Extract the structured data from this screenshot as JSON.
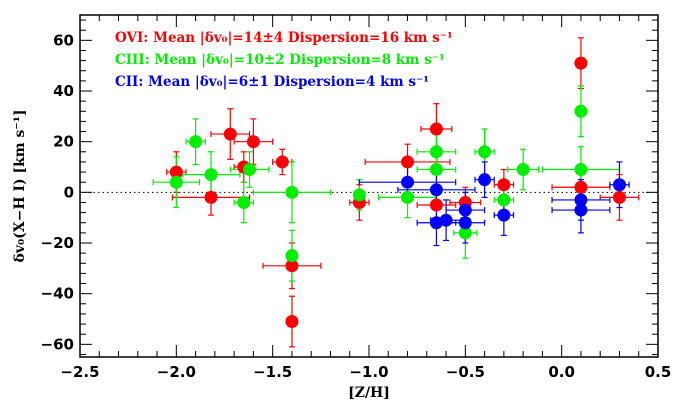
{
  "chart_data": {
    "type": "scatter",
    "xlabel": "[Z/H]",
    "ylabel": "δv₀(X−H I) [km s⁻¹]",
    "xlim": [
      -2.5,
      0.5
    ],
    "ylim": [
      -65,
      70
    ],
    "x_ticks": [
      -2.5,
      -2.0,
      -1.5,
      -1.0,
      -0.5,
      0.0,
      0.5
    ],
    "x_tick_labels": [
      "−2.5",
      "−2.0",
      "−1.5",
      "−1.0",
      "−0.5",
      "0.0",
      "0.5"
    ],
    "y_ticks": [
      -60,
      -40,
      -20,
      0,
      20,
      40,
      60
    ],
    "y_tick_labels": [
      "−60",
      "−40",
      "−20",
      "0",
      "20",
      "40",
      "60"
    ],
    "legend_placement": "top-left",
    "zero_line": true,
    "series": [
      {
        "name": "OVI: Mean |δv₀|=14±4 Dispersion=16 km s⁻¹",
        "color": "#ff0000",
        "points": [
          {
            "x": -2.0,
            "y": 8,
            "xerr": [
              0.05,
              0.05
            ],
            "yerr": [
              8,
              8
            ]
          },
          {
            "x": -1.82,
            "y": -2,
            "xerr": [
              0.2,
              0.2
            ],
            "yerr": [
              7,
              7
            ]
          },
          {
            "x": -1.72,
            "y": 23,
            "xerr": [
              0.1,
              0.1
            ],
            "yerr": [
              10,
              10
            ]
          },
          {
            "x": -1.65,
            "y": 10,
            "xerr": [
              0.05,
              0.05
            ],
            "yerr": [
              6,
              6
            ]
          },
          {
            "x": -1.6,
            "y": 20,
            "xerr": [
              0.1,
              0.1
            ],
            "yerr": [
              9,
              9
            ]
          },
          {
            "x": -1.45,
            "y": 12,
            "xerr": [
              0.05,
              0.05
            ],
            "yerr": [
              5,
              5
            ]
          },
          {
            "x": -1.4,
            "y": -29,
            "xerr": [
              0.15,
              0.15
            ],
            "yerr": [
              9,
              9
            ]
          },
          {
            "x": -1.4,
            "y": -51,
            "xerr": [
              0.02,
              0.02
            ],
            "yerr": [
              10,
              10
            ]
          },
          {
            "x": -1.05,
            "y": -4,
            "xerr": [
              0.05,
              0.05
            ],
            "yerr": [
              7,
              7
            ]
          },
          {
            "x": -0.8,
            "y": 12,
            "xerr": [
              0.22,
              0.22
            ],
            "yerr": [
              7,
              7
            ]
          },
          {
            "x": -0.65,
            "y": 25,
            "xerr": [
              0.08,
              0.08
            ],
            "yerr": [
              10,
              10
            ]
          },
          {
            "x": -0.65,
            "y": -5,
            "xerr": [
              0.1,
              0.1
            ],
            "yerr": [
              6,
              6
            ]
          },
          {
            "x": -0.5,
            "y": -4,
            "xerr": [
              0.08,
              0.08
            ],
            "yerr": [
              6,
              6
            ]
          },
          {
            "x": -0.3,
            "y": 3,
            "xerr": [
              0.05,
              0.05
            ],
            "yerr": [
              6,
              6
            ]
          },
          {
            "x": 0.1,
            "y": 51,
            "xerr": [
              0.02,
              0.02
            ],
            "yerr": [
              10,
              10
            ]
          },
          {
            "x": 0.1,
            "y": 2,
            "xerr": [
              0.15,
              0.15
            ],
            "yerr": [
              8,
              8
            ]
          },
          {
            "x": 0.3,
            "y": -2,
            "xerr": [
              0.1,
              0.1
            ],
            "yerr": [
              9,
              9
            ]
          }
        ]
      },
      {
        "name": "CIII: Mean |δv₀|=10±2 Dispersion=8 km s⁻¹",
        "color": "#00ee00",
        "points": [
          {
            "x": -2.0,
            "y": 4,
            "xerr": [
              0.12,
              0.12
            ],
            "yerr": [
              10,
              10
            ]
          },
          {
            "x": -1.9,
            "y": 20,
            "xerr": [
              0.05,
              0.05
            ],
            "yerr": [
              9,
              9
            ]
          },
          {
            "x": -1.82,
            "y": 7,
            "xerr": [
              0.15,
              0.15
            ],
            "yerr": [
              9,
              9
            ]
          },
          {
            "x": -1.65,
            "y": -4,
            "xerr": [
              0.05,
              0.05
            ],
            "yerr": [
              8,
              8
            ]
          },
          {
            "x": -1.62,
            "y": 9,
            "xerr": [
              0.1,
              0.1
            ],
            "yerr": [
              7,
              7
            ]
          },
          {
            "x": -1.4,
            "y": 0,
            "xerr": [
              0.2,
              0.2
            ],
            "yerr": [
              12,
              12
            ]
          },
          {
            "x": -1.4,
            "y": -25,
            "xerr": [
              0.02,
              0.02
            ],
            "yerr": [
              10,
              10
            ]
          },
          {
            "x": -1.05,
            "y": -1,
            "xerr": [
              0.02,
              0.02
            ],
            "yerr": [
              6,
              6
            ]
          },
          {
            "x": -0.8,
            "y": -2,
            "xerr": [
              0.15,
              0.15
            ],
            "yerr": [
              8,
              8
            ]
          },
          {
            "x": -0.65,
            "y": 16,
            "xerr": [
              0.1,
              0.1
            ],
            "yerr": [
              9,
              9
            ]
          },
          {
            "x": -0.65,
            "y": 9,
            "xerr": [
              0.1,
              0.1
            ],
            "yerr": [
              7,
              7
            ]
          },
          {
            "x": -0.5,
            "y": -16,
            "xerr": [
              0.06,
              0.06
            ],
            "yerr": [
              10,
              10
            ]
          },
          {
            "x": -0.4,
            "y": 16,
            "xerr": [
              0.05,
              0.05
            ],
            "yerr": [
              9,
              9
            ]
          },
          {
            "x": -0.3,
            "y": -3,
            "xerr": [
              0.05,
              0.05
            ],
            "yerr": [
              7,
              7
            ]
          },
          {
            "x": -0.2,
            "y": 9,
            "xerr": [
              0.08,
              0.08
            ],
            "yerr": [
              8,
              8
            ]
          },
          {
            "x": 0.1,
            "y": 32,
            "xerr": [
              0.02,
              0.02
            ],
            "yerr": [
              10,
              10
            ]
          },
          {
            "x": 0.1,
            "y": 9,
            "xerr": [
              0.2,
              0.2
            ],
            "yerr": [
              9,
              9
            ]
          }
        ]
      },
      {
        "name": "CII: Mean |δv₀|=6±1 Dispersion=4 km s⁻¹",
        "color": "#0000ff",
        "points": [
          {
            "x": -0.8,
            "y": 4,
            "xerr": [
              0.25,
              0.25
            ],
            "yerr": [
              7,
              7
            ]
          },
          {
            "x": -0.65,
            "y": 1,
            "xerr": [
              0.2,
              0.2
            ],
            "yerr": [
              7,
              7
            ]
          },
          {
            "x": -0.65,
            "y": -12,
            "xerr": [
              0.1,
              0.1
            ],
            "yerr": [
              9,
              9
            ]
          },
          {
            "x": -0.6,
            "y": -11,
            "xerr": [
              0.08,
              0.08
            ],
            "yerr": [
              8,
              8
            ]
          },
          {
            "x": -0.5,
            "y": -7,
            "xerr": [
              0.1,
              0.1
            ],
            "yerr": [
              7,
              7
            ]
          },
          {
            "x": -0.5,
            "y": -12,
            "xerr": [
              0.1,
              0.1
            ],
            "yerr": [
              8,
              8
            ]
          },
          {
            "x": -0.4,
            "y": 5,
            "xerr": [
              0.05,
              0.05
            ],
            "yerr": [
              7,
              7
            ]
          },
          {
            "x": -0.3,
            "y": -9,
            "xerr": [
              0.05,
              0.05
            ],
            "yerr": [
              8,
              8
            ]
          },
          {
            "x": 0.1,
            "y": -3,
            "xerr": [
              0.15,
              0.15
            ],
            "yerr": [
              8,
              8
            ]
          },
          {
            "x": 0.1,
            "y": -7,
            "xerr": [
              0.15,
              0.15
            ],
            "yerr": [
              9,
              9
            ]
          },
          {
            "x": 0.3,
            "y": 3,
            "xerr": [
              0.05,
              0.05
            ],
            "yerr": [
              9,
              9
            ]
          }
        ]
      }
    ]
  }
}
